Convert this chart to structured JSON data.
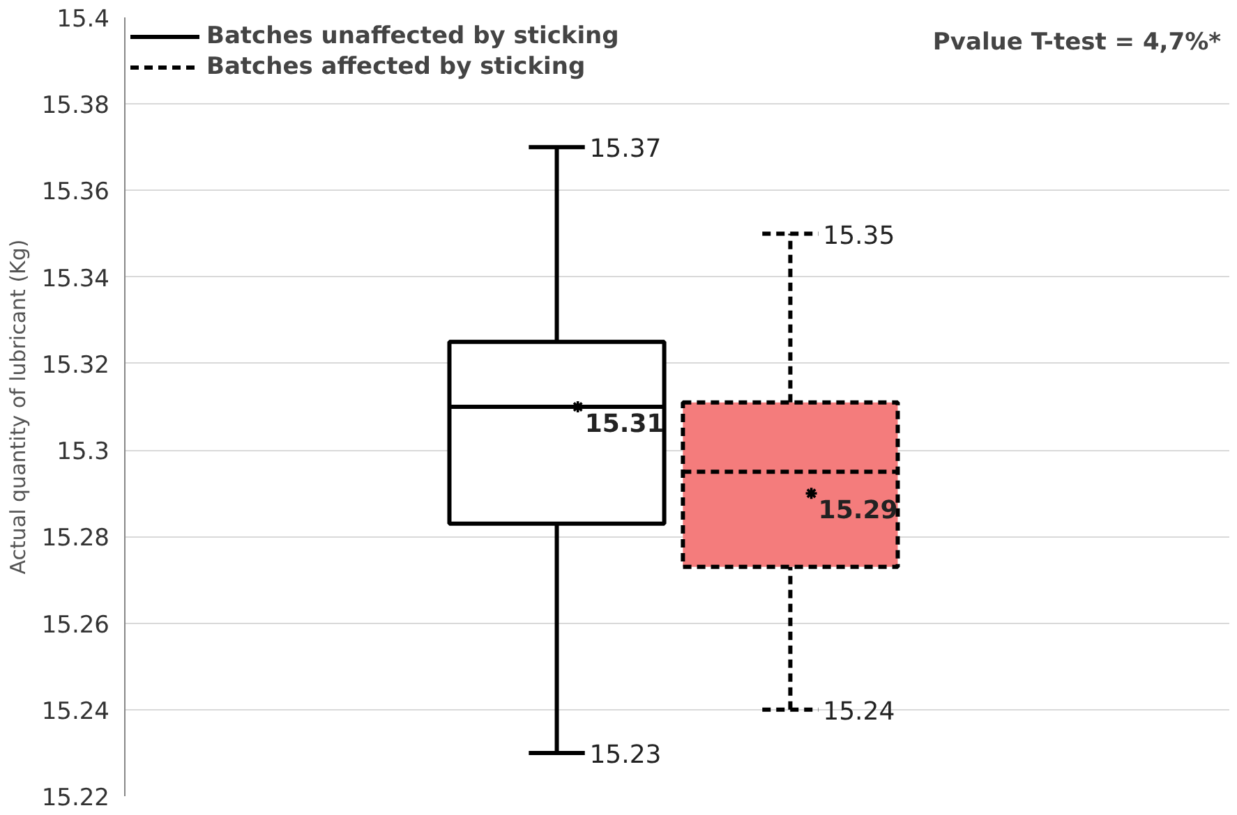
{
  "chart_data": {
    "type": "box",
    "ylabel": "Actual quantity of lubricant (Kg)",
    "categories": [
      null,
      null
    ],
    "ylim": [
      15.22,
      15.4
    ],
    "yticks": [
      15.22,
      15.24,
      15.26,
      15.28,
      15.3,
      15.32,
      15.34,
      15.36,
      15.38,
      15.4
    ],
    "grid": "y",
    "legend": "top left",
    "tick_labels": "y",
    "annotations": [
      "Pvalue T-test = 4,7%*",
      "15.37",
      "15.23",
      "15.31",
      "15.35",
      "15.24",
      "15.29"
    ],
    "series": [
      {
        "name": "Batches unaffected by sticking",
        "color": "#ffffff",
        "line_style": "solid",
        "boxes": [
          {
            "low": 15.23,
            "q1": 15.283,
            "median": 15.31,
            "q3": 15.325,
            "high": 15.37,
            "mean": 15.31
          },
          null
        ]
      },
      {
        "name": "Batches affected by sticking",
        "color": "#f47c7c",
        "line_style": "dashed",
        "boxes": [
          null,
          {
            "low": 15.24,
            "q1": 15.273,
            "median": 15.295,
            "q3": 15.311,
            "high": 15.35,
            "mean": 15.29
          }
        ]
      }
    ]
  }
}
